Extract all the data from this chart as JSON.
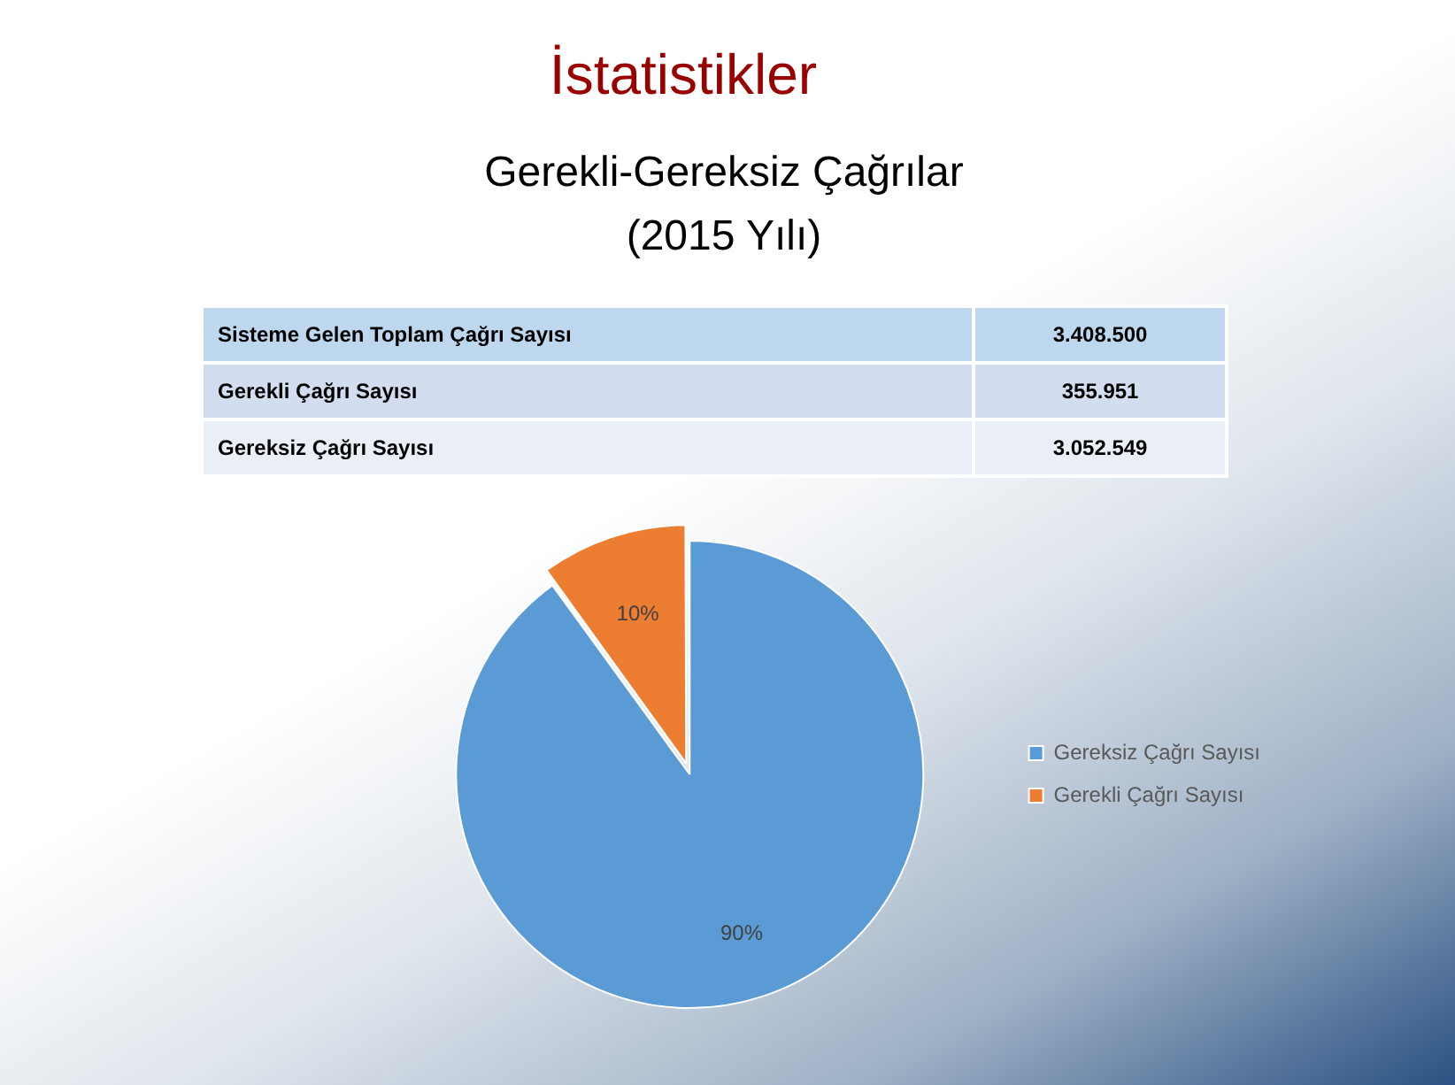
{
  "chart_data": {
    "type": "pie",
    "title": "İstatistikler",
    "subtitle": "Gerekli-Gereksiz Çağrılar\n(2015 Yılı)",
    "categories": [
      "Gereksiz Çağrı Sayısı",
      "Gerekli Çağrı Sayısı"
    ],
    "values": [
      90,
      10
    ],
    "colors": [
      "#5b9bd5",
      "#ed7d31"
    ],
    "value_labels": [
      "90%",
      "10%"
    ],
    "legend": "right",
    "annotations": [
      "Sisteme Gelen Toplam Çağrı Sayısı",
      "3.408.500",
      "Gerekli Çağrı Sayısı",
      "355.951",
      "Gereksiz Çağrı Sayısı",
      "3.052.549"
    ]
  }
}
